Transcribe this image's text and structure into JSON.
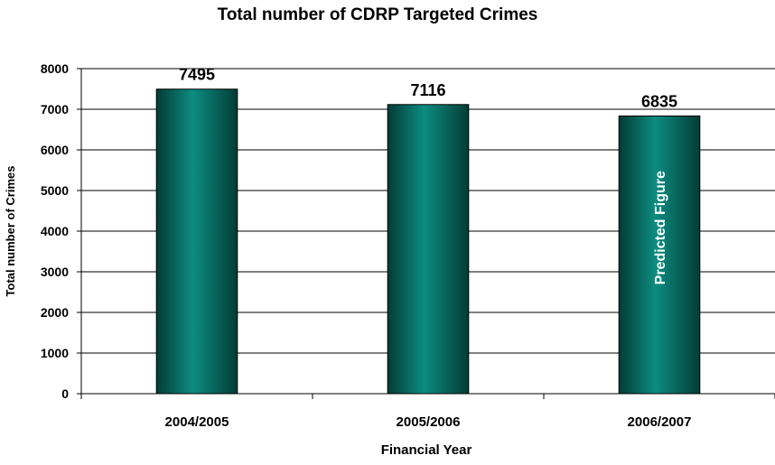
{
  "chart_data": {
    "type": "bar",
    "title": "Total number of CDRP Targeted Crimes",
    "xlabel": "Financial Year",
    "ylabel": "Total number of Crimes",
    "categories": [
      "2004/2005",
      "2005/2006",
      "2006/2007"
    ],
    "values": [
      7495,
      7116,
      6835
    ],
    "ylim": [
      0,
      8000
    ],
    "yticks": [
      0,
      1000,
      2000,
      3000,
      4000,
      5000,
      6000,
      7000,
      8000
    ],
    "grid": true,
    "annotations": [
      {
        "category": "2006/2007",
        "text": "Predicted Figure"
      }
    ],
    "colors": {
      "bar_dark": "#033c36",
      "bar_light": "#0c8c80",
      "grid": "#000000"
    }
  }
}
